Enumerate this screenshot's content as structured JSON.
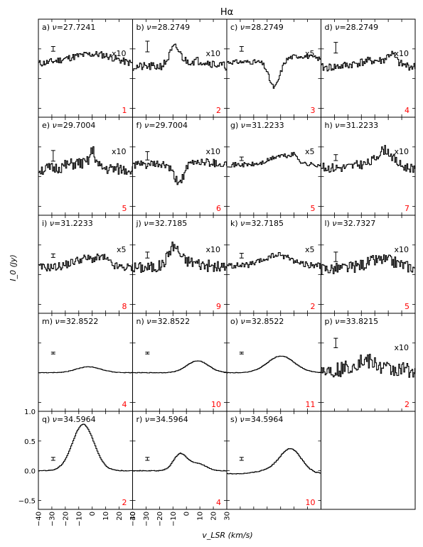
{
  "chart_data": {
    "type": "line",
    "title": "Hα",
    "xlabel": "v_LSR (km/s)",
    "ylabel": "I_0 (Jy)",
    "xlim": [
      -40,
      30
    ],
    "ylim": [
      -0.65,
      1.0
    ],
    "x_ticks": [
      -40,
      -30,
      -20,
      -10,
      0,
      10,
      20,
      30
    ],
    "y_ticks": [
      -0.5,
      0.0,
      0.5,
      1.0
    ],
    "grid": false,
    "panels": [
      {
        "label": "a)",
        "nu": "27.7241",
        "mult": "x10",
        "count": "1",
        "errbar": {
          "x": -29,
          "y": 0.5,
          "half": 0.04
        },
        "profile": {
          "base": 0.23,
          "noise": 0.06,
          "seed": 11,
          "peaks": [
            {
              "c": -5,
              "w": 18,
              "a": 0.15
            },
            {
              "c": 8,
              "w": 10,
              "a": 0.05
            }
          ]
        }
      },
      {
        "label": "b)",
        "nu": "28.2749",
        "mult": "x10",
        "count": "2",
        "errbar": {
          "x": -29,
          "y": 0.54,
          "half": 0.09
        },
        "profile": {
          "base": 0.2,
          "noise": 0.07,
          "seed": 21,
          "peaks": [
            {
              "c": -9,
              "w": 4,
              "a": 0.3
            },
            {
              "c": 8,
              "w": 10,
              "a": 0.1
            }
          ]
        }
      },
      {
        "label": "c)",
        "nu": "28.2749",
        "mult": "x5",
        "count": "3",
        "errbar": {
          "x": -29,
          "y": 0.5,
          "half": 0.04
        },
        "profile": {
          "base": 0.28,
          "noise": 0.04,
          "seed": 31,
          "peaks": [
            {
              "c": -5,
              "w": 4,
              "a": -0.45
            },
            {
              "c": 15,
              "w": 12,
              "a": 0.1
            }
          ]
        }
      },
      {
        "label": "d)",
        "nu": "28.2749",
        "mult": "x10",
        "count": "4",
        "errbar": {
          "x": -29,
          "y": 0.52,
          "half": 0.09
        },
        "profile": {
          "base": 0.18,
          "noise": 0.07,
          "seed": 41,
          "peaks": [
            {
              "c": 0,
              "w": 15,
              "a": 0.12
            },
            {
              "c": 12,
              "w": 3,
              "a": 0.15
            }
          ]
        }
      },
      {
        "label": "e)",
        "nu": "29.7004",
        "mult": "x10",
        "count": "5",
        "errbar": {
          "x": -29,
          "y": 0.35,
          "half": 0.09
        },
        "profile": {
          "base": 0.12,
          "noise": 0.1,
          "seed": 51,
          "peaks": [
            {
              "c": -10,
              "w": 10,
              "a": 0.1
            },
            {
              "c": 0,
              "w": 2,
              "a": 0.25
            }
          ]
        }
      },
      {
        "label": "f)",
        "nu": "29.7004",
        "mult": "x10",
        "count": "6",
        "errbar": {
          "x": -29,
          "y": 0.35,
          "half": 0.07
        },
        "profile": {
          "base": 0.2,
          "noise": 0.07,
          "seed": 61,
          "peaks": [
            {
              "c": -6,
              "w": 4,
              "a": -0.3
            },
            {
              "c": 10,
              "w": 10,
              "a": 0.05
            }
          ]
        }
      },
      {
        "label": "g)",
        "nu": "31.2233",
        "mult": "x5",
        "count": "5",
        "errbar": {
          "x": -29,
          "y": 0.3,
          "half": 0.03
        },
        "profile": {
          "base": 0.2,
          "noise": 0.04,
          "seed": 71,
          "peaks": [
            {
              "c": 0,
              "w": 8,
              "a": 0.15
            },
            {
              "c": 10,
              "w": 3,
              "a": 0.1
            }
          ]
        }
      },
      {
        "label": "h)",
        "nu": "31.2233",
        "mult": "x10",
        "count": "7",
        "errbar": {
          "x": -29,
          "y": 0.32,
          "half": 0.05
        },
        "profile": {
          "base": 0.15,
          "noise": 0.08,
          "seed": 81,
          "peaks": [
            {
              "c": 7,
              "w": 6,
              "a": 0.3
            },
            {
              "c": -10,
              "w": 6,
              "a": 0.05
            }
          ]
        }
      },
      {
        "label": "i)",
        "nu": "31.2233",
        "mult": "x5",
        "count": "8",
        "errbar": {
          "x": -29,
          "y": 0.32,
          "half": 0.03
        },
        "profile": {
          "base": 0.12,
          "noise": 0.07,
          "seed": 91,
          "peaks": [
            {
              "c": -5,
              "w": 10,
              "a": 0.15
            },
            {
              "c": 8,
              "w": 4,
              "a": 0.1
            }
          ]
        }
      },
      {
        "label": "j)",
        "nu": "32.7185",
        "mult": "x10",
        "count": "9",
        "errbar": {
          "x": -29,
          "y": 0.33,
          "half": 0.05
        },
        "profile": {
          "base": 0.12,
          "noise": 0.1,
          "seed": 101,
          "peaks": [
            {
              "c": -10,
              "w": 4,
              "a": 0.3
            },
            {
              "c": 0,
              "w": 10,
              "a": 0.1
            }
          ]
        }
      },
      {
        "label": "k)",
        "nu": "32.7185",
        "mult": "x5",
        "count": "2",
        "errbar": {
          "x": -29,
          "y": 0.32,
          "half": 0.04
        },
        "profile": {
          "base": 0.15,
          "noise": 0.05,
          "seed": 111,
          "peaks": [
            {
              "c": -2,
              "w": 10,
              "a": 0.18
            }
          ]
        }
      },
      {
        "label": "l)",
        "nu": "32.7327",
        "mult": "x10",
        "count": "5",
        "errbar": {
          "x": -29,
          "y": 0.3,
          "half": 0.08
        },
        "profile": {
          "base": 0.1,
          "noise": 0.1,
          "seed": 121,
          "peaks": [
            {
              "c": 5,
              "w": 12,
              "a": 0.15
            }
          ]
        }
      },
      {
        "label": "m)",
        "nu": "32.8522",
        "mult": "",
        "count": "4",
        "errbar": {
          "x": -29,
          "y": 0.33,
          "half": 0.015
        },
        "profile": {
          "base": 0.0,
          "noise": 0.004,
          "seed": 131,
          "peaks": [
            {
              "c": -3,
              "w": 9,
              "a": 0.1
            }
          ]
        }
      },
      {
        "label": "n)",
        "nu": "32.8522",
        "mult": "",
        "count": "10",
        "errbar": {
          "x": -29,
          "y": 0.33,
          "half": 0.015
        },
        "profile": {
          "base": 0.0,
          "noise": 0.004,
          "seed": 141,
          "peaks": [
            {
              "c": 8,
              "w": 8,
              "a": 0.2
            }
          ]
        }
      },
      {
        "label": "o)",
        "nu": "32.8522",
        "mult": "",
        "count": "11",
        "errbar": {
          "x": -29,
          "y": 0.33,
          "half": 0.015
        },
        "profile": {
          "base": 0.0,
          "noise": 0.004,
          "seed": 151,
          "peaks": [
            {
              "c": 0,
              "w": 10,
              "a": 0.28
            }
          ]
        }
      },
      {
        "label": "p)",
        "nu": "33.8215",
        "mult": "x10",
        "count": "2",
        "errbar": {
          "x": -29,
          "y": 0.5,
          "half": 0.08
        },
        "profile": {
          "base": 0.05,
          "noise": 0.13,
          "seed": 161,
          "peaks": [
            {
              "c": -8,
              "w": 8,
              "a": 0.15
            }
          ]
        }
      },
      {
        "label": "q)",
        "nu": "34.5964",
        "mult": "",
        "count": "2",
        "errbar": {
          "x": -29,
          "y": 0.2,
          "half": 0.025
        },
        "profile": {
          "base": 0.0,
          "noise": 0.005,
          "seed": 171,
          "peaks": [
            {
              "c": -7,
              "w": 8,
              "a": 0.78
            }
          ]
        }
      },
      {
        "label": "r)",
        "nu": "34.5964",
        "mult": "",
        "count": "4",
        "errbar": {
          "x": -29,
          "y": 0.2,
          "half": 0.025
        },
        "profile": {
          "base": 0.0,
          "noise": 0.006,
          "seed": 181,
          "peaks": [
            {
              "c": -5,
              "w": 5,
              "a": 0.28
            },
            {
              "c": 8,
              "w": 6,
              "a": 0.12
            }
          ]
        }
      },
      {
        "label": "s)",
        "nu": "34.5964",
        "mult": "",
        "count": "10",
        "errbar": {
          "x": -29,
          "y": 0.2,
          "half": 0.025
        },
        "profile": {
          "base": -0.05,
          "noise": 0.007,
          "seed": 191,
          "peaks": [
            {
              "c": 7,
              "w": 8,
              "a": 0.42
            },
            {
              "c": -10,
              "w": 8,
              "a": 0.05
            }
          ]
        }
      }
    ],
    "colors": {
      "line": "#000000",
      "count_text": "#ff0000"
    }
  }
}
